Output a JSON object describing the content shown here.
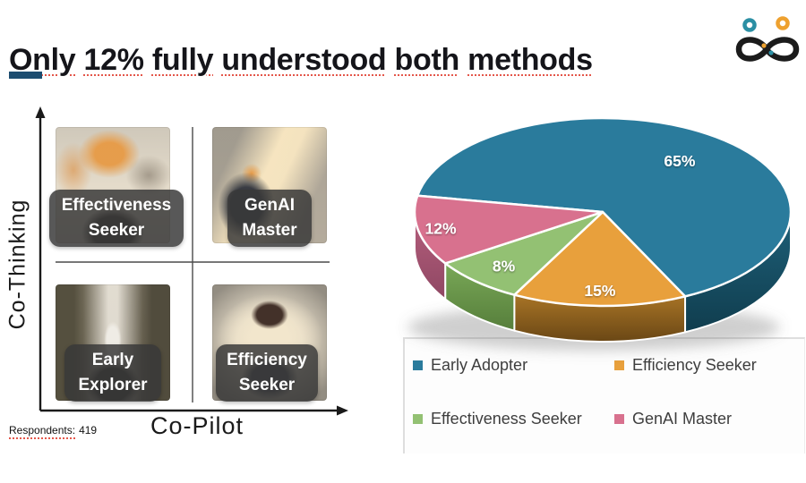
{
  "slide": {
    "title": "Only 12% fully understood both methods",
    "title_underline_color": "#e4574b",
    "accent_color": "#1d4d70",
    "respondents_label": "Respondents:",
    "respondents_value": "419"
  },
  "logo": {
    "name": "infinity-people-logo",
    "loop_color": "#1b1b1b",
    "left_head_color": "#2b8fa4",
    "right_head_color": "#eea12f"
  },
  "quadrant": {
    "y_axis_label": "Co-Thinking",
    "x_axis_label": "Co-Pilot",
    "cells": [
      {
        "id": "effectiveness-seeker",
        "position": "top-left",
        "label_line1": "Effectiveness",
        "label_line2": "Seeker"
      },
      {
        "id": "genai-master",
        "position": "top-right",
        "label_line1": "GenAI",
        "label_line2": "Master"
      },
      {
        "id": "early-explorer",
        "position": "bottom-left",
        "label_line1": "Early",
        "label_line2": "Explorer"
      },
      {
        "id": "efficiency-seeker",
        "position": "bottom-right",
        "label_line1": "Efficiency",
        "label_line2": "Seeker"
      }
    ]
  },
  "chart_data": {
    "type": "pie",
    "style": "3d",
    "title": "",
    "start_angle_deg": 170,
    "direction": "clockwise",
    "legend_position": "bottom",
    "slices": [
      {
        "label": "Early Adopter",
        "value": 65,
        "data_label": "65%",
        "color": "#2a7b9c",
        "side_colors": [
          "#1e6079",
          "#103d4e"
        ]
      },
      {
        "label": "Efficiency Seeker",
        "value": 15,
        "data_label": "15%",
        "color": "#e8a03c",
        "side_colors": [
          "#a87426",
          "#6a4715"
        ]
      },
      {
        "label": "Effectiveness Seeker",
        "value": 8,
        "data_label": "8%",
        "color": "#93c173",
        "side_colors": [
          "#79a857",
          "#567e3b"
        ]
      },
      {
        "label": "GenAI Master",
        "value": 12,
        "data_label": "12%",
        "color": "#d8718e",
        "side_colors": [
          "#b65f7d",
          "#8f4763"
        ]
      }
    ]
  }
}
